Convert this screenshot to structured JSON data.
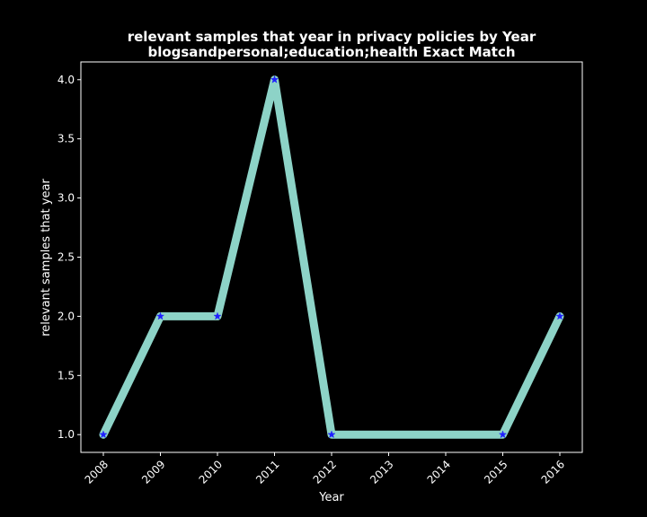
{
  "chart_data": {
    "type": "line",
    "title": "relevant samples that year in privacy policies by Year",
    "subtitle": "blogsandpersonal;education;health Exact Match",
    "xlabel": "Year",
    "ylabel": "relevant samples that year",
    "x": [
      "2008",
      "2009",
      "2010",
      "2011",
      "2012",
      "2013",
      "2014",
      "2015",
      "2016"
    ],
    "series": [
      {
        "points": [
          {
            "x": "2008",
            "y": 1.0
          },
          {
            "x": "2009",
            "y": 2.0
          },
          {
            "x": "2010",
            "y": 2.0
          },
          {
            "x": "2011",
            "y": 4.0
          },
          {
            "x": "2012",
            "y": 1.0
          },
          {
            "x": "2015",
            "y": 1.0
          },
          {
            "x": "2016",
            "y": 2.0
          }
        ],
        "line_color": "#8dd3c7",
        "marker": "star",
        "marker_color": "#1f1fff"
      }
    ],
    "yticks": [
      "1.0",
      "1.5",
      "2.0",
      "2.5",
      "3.0",
      "3.5",
      "4.0"
    ],
    "ylim": [
      0.85,
      4.15
    ],
    "grid": false,
    "background": "#000000",
    "axes_color": "#ffffff"
  }
}
